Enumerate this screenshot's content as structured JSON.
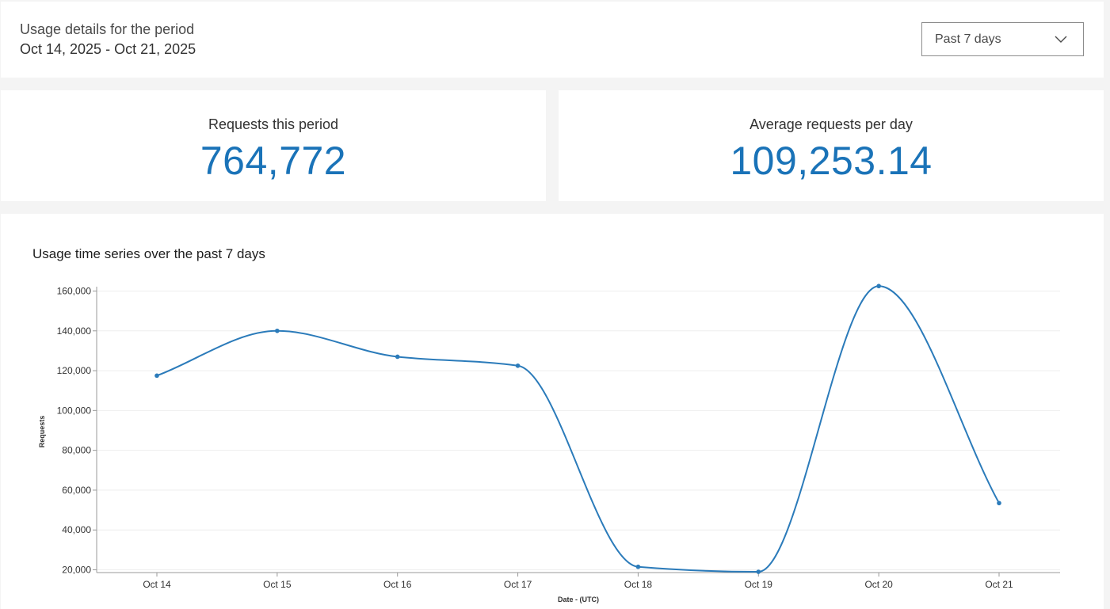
{
  "header": {
    "period_label": "Usage details for the period",
    "period_range": "Oct 14, 2025 - Oct 21, 2025",
    "period_select": {
      "value": "Past 7 days",
      "icon": "chevron-down-icon"
    }
  },
  "stats": {
    "requests": {
      "label": "Requests this period",
      "value": "764,772"
    },
    "average": {
      "label": "Average requests per day",
      "value": "109,253.14"
    }
  },
  "colors": {
    "accent": "#1a73b8",
    "line": "#2b7bba"
  },
  "chart": {
    "title": "Usage time series over the past 7 days"
  },
  "chart_data": {
    "type": "line",
    "title": "Usage time series over the past 7 days",
    "xlabel": "Date - (UTC)",
    "ylabel": "Requests",
    "categories": [
      "Oct 14",
      "Oct 15",
      "Oct 16",
      "Oct 17",
      "Oct 18",
      "Oct 19",
      "Oct 20",
      "Oct 21"
    ],
    "y_ticks": [
      "20,000",
      "40,000",
      "60,000",
      "80,000",
      "100,000",
      "120,000",
      "140,000",
      "160,000"
    ],
    "ylim": [
      20000,
      160000
    ],
    "grid": true,
    "smooth": true,
    "series": [
      {
        "values": [
          117500,
          140000,
          127000,
          122500,
          21500,
          19000,
          162500,
          53500
        ]
      }
    ]
  }
}
